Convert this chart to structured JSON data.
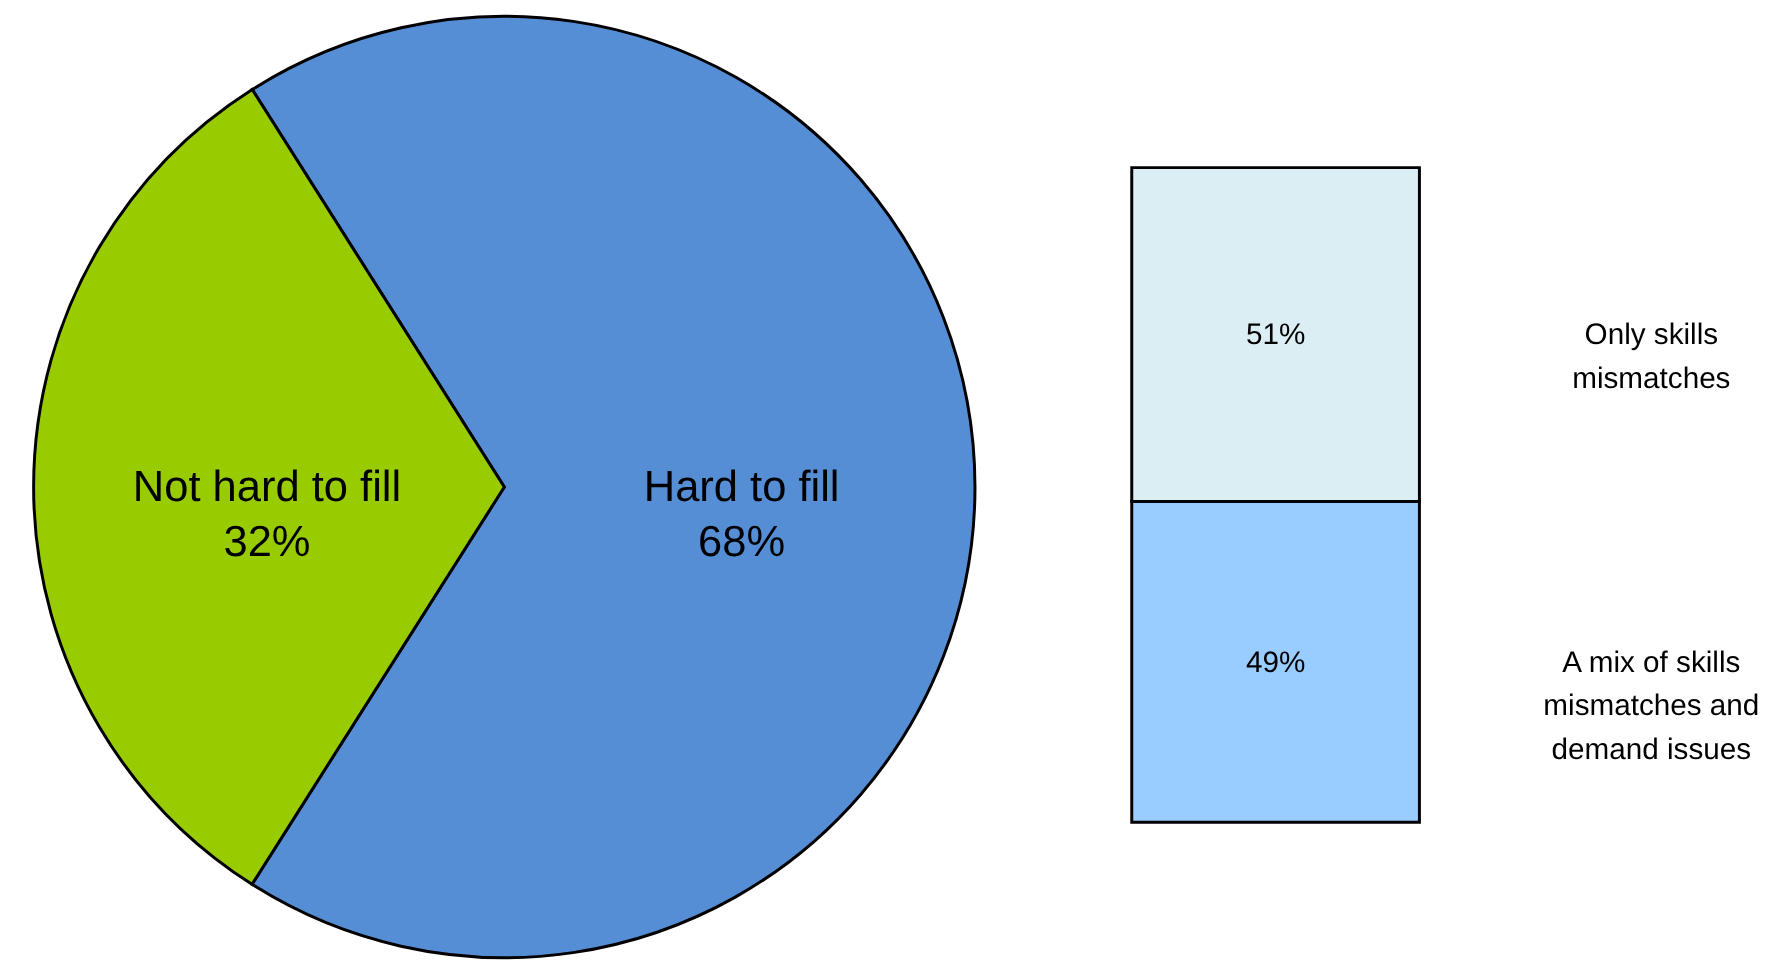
{
  "chart_data": [
    {
      "type": "pie",
      "categories": [
        "Hard to fill",
        "Not hard to fill"
      ],
      "values": [
        68,
        32
      ],
      "colors": [
        "#558ed5",
        "#99cc00"
      ],
      "value_labels": [
        "68%",
        "32%"
      ]
    },
    {
      "type": "bar",
      "stacked": true,
      "categories": [
        null
      ],
      "series": [
        {
          "name": "A mix of skills mismatches and demand issues",
          "color": "#99ccff",
          "values": [
            49
          ],
          "value_labels": [
            "49%"
          ]
        },
        {
          "name": "Only skills mismatches",
          "color": "#dbeef4",
          "values": [
            51
          ],
          "value_labels": [
            "51%"
          ]
        }
      ]
    }
  ]
}
